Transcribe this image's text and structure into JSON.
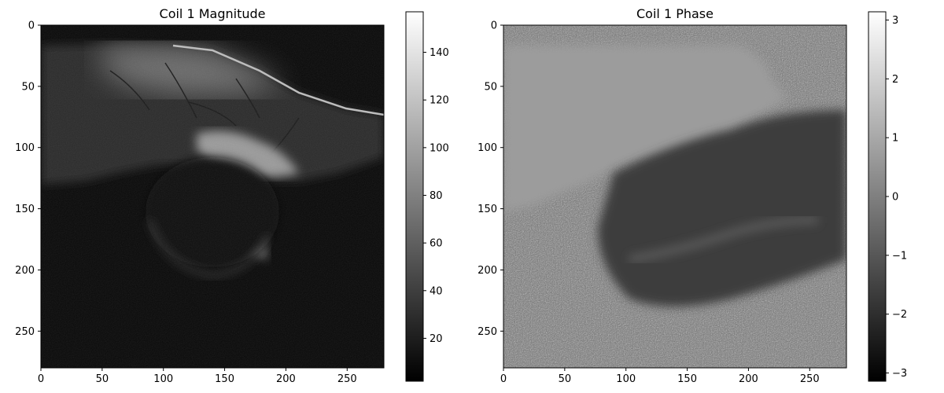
{
  "chart_data": [
    {
      "type": "heatmap",
      "title": "Coil 1 Magnitude",
      "xlabel": "",
      "ylabel": "",
      "xlim": [
        0,
        280
      ],
      "ylim": [
        280,
        0
      ],
      "x_ticks": [
        0,
        50,
        100,
        150,
        200,
        250
      ],
      "y_ticks": [
        0,
        50,
        100,
        150,
        200,
        250
      ],
      "x_tick_labels": [
        "0",
        "50",
        "100",
        "150",
        "200",
        "250"
      ],
      "y_tick_labels": [
        "0",
        "50",
        "100",
        "150",
        "200",
        "250"
      ],
      "colormap": "gray",
      "colorbar": {
        "range": [
          2,
          157
        ],
        "ticks": [
          20,
          40,
          60,
          80,
          100,
          120,
          140
        ],
        "tick_labels": [
          "20",
          "40",
          "60",
          "80",
          "100",
          "120",
          "140"
        ]
      },
      "grid": false
    },
    {
      "type": "heatmap",
      "title": "Coil 1 Phase",
      "xlabel": "",
      "ylabel": "",
      "xlim": [
        0,
        280
      ],
      "ylim": [
        280,
        0
      ],
      "x_ticks": [
        0,
        50,
        100,
        150,
        200,
        250
      ],
      "y_ticks": [
        0,
        50,
        100,
        150,
        200,
        250
      ],
      "x_tick_labels": [
        "0",
        "50",
        "100",
        "150",
        "200",
        "250"
      ],
      "y_tick_labels": [
        "0",
        "50",
        "100",
        "150",
        "200",
        "250"
      ],
      "colormap": "gray",
      "colorbar": {
        "range": [
          -3.14,
          3.14
        ],
        "ticks": [
          -3,
          -2,
          -1,
          0,
          1,
          2,
          3
        ],
        "tick_labels": [
          "−3",
          "−2",
          "−1",
          "0",
          "1",
          "2",
          "3"
        ]
      },
      "grid": false
    }
  ]
}
